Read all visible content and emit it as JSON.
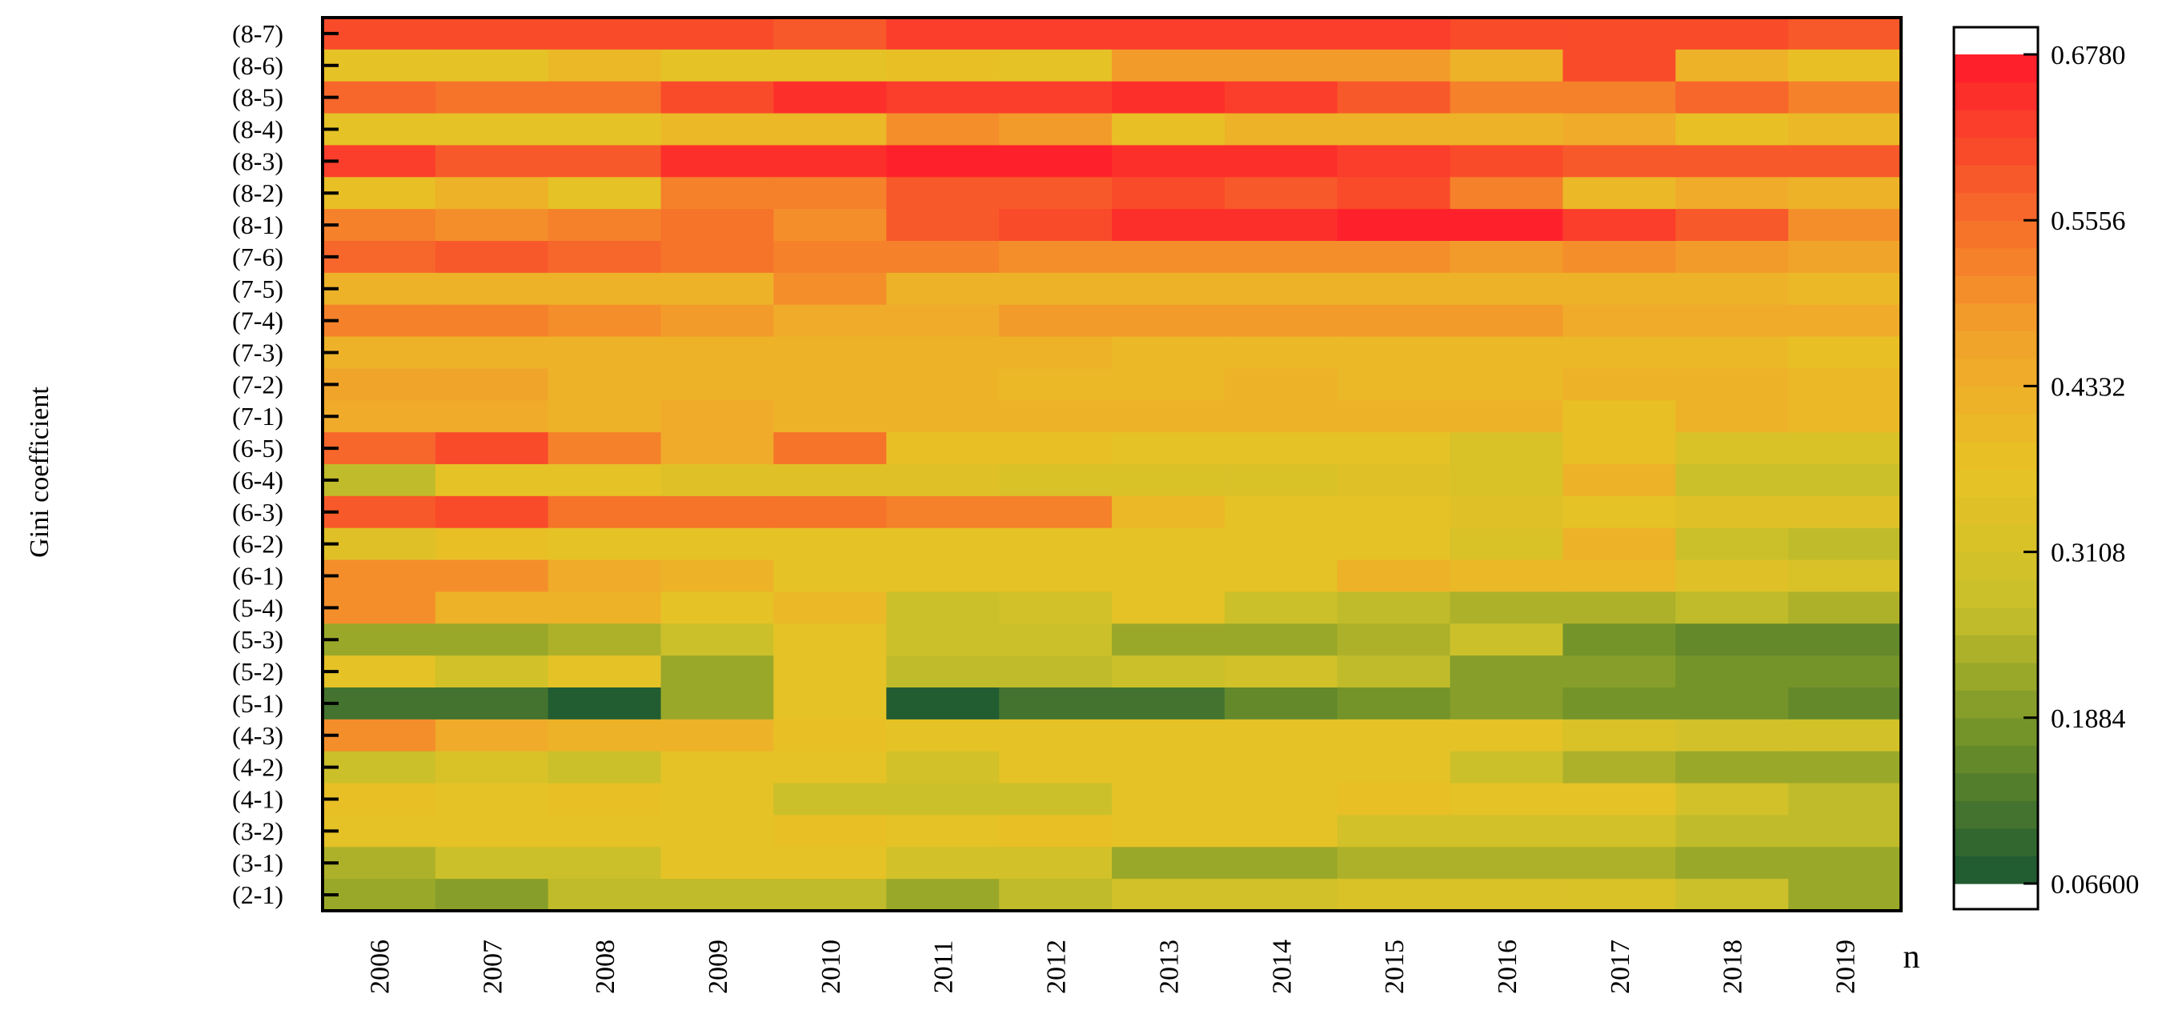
{
  "chart_data": {
    "type": "heatmap",
    "ylabel": "Gini coefficient",
    "xlabel": "n",
    "x_categories": [
      "2006",
      "2007",
      "2008",
      "2009",
      "2010",
      "2011",
      "2012",
      "2013",
      "2014",
      "2015",
      "2016",
      "2017",
      "2018",
      "2019"
    ],
    "y_categories": [
      "(8-7)",
      "(8-6)",
      "(8-5)",
      "(8-4)",
      "(8-3)",
      "(8-2)",
      "(8-1)",
      "(7-6)",
      "(7-5)",
      "(7-4)",
      "(7-3)",
      "(7-2)",
      "(7-1)",
      "(6-5)",
      "(6-4)",
      "(6-3)",
      "(6-2)",
      "(6-1)",
      "(5-4)",
      "(5-3)",
      "(5-2)",
      "(5-1)",
      "(4-3)",
      "(4-2)",
      "(4-1)",
      "(3-2)",
      "(3-1)",
      "(2-1)"
    ],
    "colorbar": {
      "min": 0.066,
      "max": 0.678,
      "tick_labels": [
        "0.6780",
        "0.5556",
        "0.4332",
        "0.3108",
        "0.1884",
        "0.06600"
      ],
      "tick_values": [
        0.678,
        0.5556,
        0.4332,
        0.3108,
        0.1884,
        0.066
      ],
      "levels": 30,
      "colors": [
        "#1a5632",
        "#6b8f2a",
        "#c9c02a",
        "#e8c225",
        "#f2a12a",
        "#f7602a",
        "#ff1a2b"
      ]
    },
    "values": [
      [
        0.6,
        0.6,
        0.6,
        0.6,
        0.59,
        0.62,
        0.62,
        0.62,
        0.62,
        0.62,
        0.61,
        0.61,
        0.61,
        0.58
      ],
      [
        0.36,
        0.36,
        0.41,
        0.36,
        0.36,
        0.38,
        0.36,
        0.48,
        0.48,
        0.48,
        0.43,
        0.6,
        0.42,
        0.38
      ],
      [
        0.56,
        0.55,
        0.55,
        0.61,
        0.65,
        0.63,
        0.63,
        0.65,
        0.63,
        0.58,
        0.53,
        0.52,
        0.56,
        0.53
      ],
      [
        0.36,
        0.36,
        0.36,
        0.4,
        0.4,
        0.51,
        0.49,
        0.39,
        0.43,
        0.43,
        0.42,
        0.44,
        0.39,
        0.4
      ],
      [
        0.62,
        0.59,
        0.58,
        0.65,
        0.65,
        0.68,
        0.68,
        0.65,
        0.64,
        0.63,
        0.61,
        0.59,
        0.58,
        0.58
      ],
      [
        0.38,
        0.43,
        0.36,
        0.53,
        0.53,
        0.58,
        0.59,
        0.6,
        0.58,
        0.6,
        0.53,
        0.41,
        0.45,
        0.43
      ],
      [
        0.53,
        0.5,
        0.53,
        0.55,
        0.51,
        0.59,
        0.61,
        0.65,
        0.65,
        0.68,
        0.67,
        0.63,
        0.58,
        0.51
      ],
      [
        0.57,
        0.58,
        0.57,
        0.54,
        0.53,
        0.53,
        0.51,
        0.51,
        0.51,
        0.51,
        0.49,
        0.51,
        0.49,
        0.47
      ],
      [
        0.43,
        0.43,
        0.43,
        0.43,
        0.51,
        0.42,
        0.42,
        0.42,
        0.42,
        0.42,
        0.42,
        0.42,
        0.42,
        0.4
      ],
      [
        0.53,
        0.53,
        0.51,
        0.49,
        0.44,
        0.44,
        0.48,
        0.48,
        0.48,
        0.48,
        0.48,
        0.44,
        0.44,
        0.44
      ],
      [
        0.43,
        0.43,
        0.43,
        0.43,
        0.42,
        0.42,
        0.42,
        0.41,
        0.41,
        0.41,
        0.41,
        0.41,
        0.41,
        0.39
      ],
      [
        0.47,
        0.47,
        0.43,
        0.43,
        0.42,
        0.43,
        0.41,
        0.41,
        0.43,
        0.41,
        0.41,
        0.43,
        0.43,
        0.4
      ],
      [
        0.45,
        0.45,
        0.43,
        0.45,
        0.43,
        0.43,
        0.43,
        0.43,
        0.43,
        0.43,
        0.43,
        0.39,
        0.43,
        0.4
      ],
      [
        0.57,
        0.6,
        0.53,
        0.45,
        0.55,
        0.38,
        0.38,
        0.36,
        0.36,
        0.36,
        0.33,
        0.38,
        0.32,
        0.32
      ],
      [
        0.26,
        0.36,
        0.36,
        0.35,
        0.35,
        0.35,
        0.33,
        0.33,
        0.33,
        0.34,
        0.33,
        0.43,
        0.29,
        0.29
      ],
      [
        0.58,
        0.6,
        0.55,
        0.55,
        0.55,
        0.53,
        0.53,
        0.4,
        0.37,
        0.37,
        0.35,
        0.37,
        0.34,
        0.34
      ],
      [
        0.35,
        0.38,
        0.36,
        0.36,
        0.36,
        0.36,
        0.36,
        0.36,
        0.36,
        0.36,
        0.33,
        0.43,
        0.28,
        0.26
      ],
      [
        0.51,
        0.51,
        0.44,
        0.42,
        0.36,
        0.36,
        0.36,
        0.36,
        0.36,
        0.42,
        0.4,
        0.4,
        0.35,
        0.32
      ],
      [
        0.51,
        0.42,
        0.42,
        0.36,
        0.4,
        0.29,
        0.3,
        0.36,
        0.29,
        0.26,
        0.24,
        0.24,
        0.26,
        0.23
      ],
      [
        0.22,
        0.22,
        0.24,
        0.28,
        0.36,
        0.29,
        0.29,
        0.21,
        0.21,
        0.24,
        0.27,
        0.18,
        0.16,
        0.16
      ],
      [
        0.36,
        0.3,
        0.36,
        0.22,
        0.36,
        0.25,
        0.26,
        0.29,
        0.31,
        0.26,
        0.2,
        0.2,
        0.18,
        0.18
      ],
      [
        0.12,
        0.12,
        0.08,
        0.21,
        0.36,
        0.08,
        0.12,
        0.12,
        0.15,
        0.18,
        0.2,
        0.18,
        0.18,
        0.15
      ],
      [
        0.5,
        0.45,
        0.42,
        0.42,
        0.38,
        0.36,
        0.36,
        0.36,
        0.36,
        0.36,
        0.36,
        0.32,
        0.3,
        0.3
      ],
      [
        0.29,
        0.32,
        0.29,
        0.36,
        0.36,
        0.31,
        0.36,
        0.36,
        0.36,
        0.36,
        0.29,
        0.24,
        0.22,
        0.22
      ],
      [
        0.39,
        0.37,
        0.39,
        0.36,
        0.28,
        0.29,
        0.28,
        0.36,
        0.36,
        0.38,
        0.37,
        0.36,
        0.31,
        0.26
      ],
      [
        0.37,
        0.37,
        0.37,
        0.36,
        0.38,
        0.36,
        0.38,
        0.36,
        0.36,
        0.31,
        0.3,
        0.3,
        0.26,
        0.26
      ],
      [
        0.24,
        0.28,
        0.28,
        0.36,
        0.36,
        0.31,
        0.31,
        0.21,
        0.21,
        0.24,
        0.24,
        0.24,
        0.22,
        0.22
      ],
      [
        0.22,
        0.19,
        0.26,
        0.26,
        0.26,
        0.21,
        0.26,
        0.31,
        0.31,
        0.33,
        0.33,
        0.33,
        0.27,
        0.22
      ]
    ]
  }
}
